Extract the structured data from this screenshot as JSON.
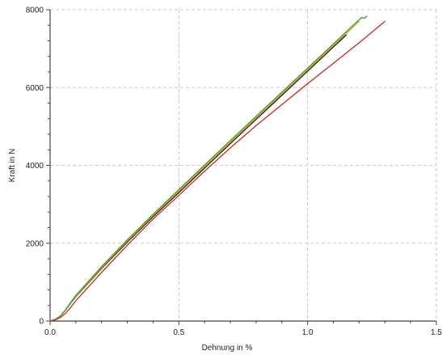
{
  "chart_data": {
    "type": "line",
    "title": "",
    "xlabel": "Dehnung in %",
    "ylabel": "Kraft in N",
    "xlim": [
      0,
      1.5
    ],
    "ylim": [
      0,
      8000
    ],
    "x_ticks": [
      "0.0",
      "0.5",
      "1.0",
      "1.5"
    ],
    "y_ticks": [
      "0",
      "2000",
      "4000",
      "6000",
      "8000"
    ],
    "grid": true,
    "legend": "none",
    "series": [
      {
        "color": "#1a1a1a",
        "x": [
          0,
          0.02,
          0.04,
          0.06,
          0.08,
          0.1,
          0.2,
          0.3,
          0.4,
          0.5,
          0.6,
          0.7,
          0.8,
          0.9,
          1.0,
          1.1,
          1.15
        ],
        "y": [
          0,
          40,
          130,
          280,
          460,
          630,
          1350,
          2030,
          2680,
          3300,
          3930,
          4560,
          5180,
          5800,
          6420,
          7040,
          7350
        ]
      },
      {
        "color": "#e09a20",
        "x": [
          0,
          0.02,
          0.04,
          0.06,
          0.08,
          0.1,
          0.2,
          0.3,
          0.4,
          0.5,
          0.6,
          0.7,
          0.8,
          0.9,
          1.0,
          1.1,
          1.2
        ],
        "y": [
          0,
          40,
          130,
          280,
          470,
          640,
          1370,
          2060,
          2710,
          3340,
          3970,
          4600,
          5220,
          5840,
          6460,
          7080,
          7700
        ]
      },
      {
        "color": "#3aa035",
        "x": [
          0,
          0.02,
          0.04,
          0.06,
          0.08,
          0.1,
          0.2,
          0.3,
          0.4,
          0.5,
          0.6,
          0.7,
          0.8,
          0.9,
          1.0,
          1.1,
          1.18,
          1.21,
          1.22,
          1.23
        ],
        "y": [
          0,
          40,
          130,
          290,
          480,
          660,
          1400,
          2090,
          2740,
          3380,
          4010,
          4640,
          5260,
          5880,
          6500,
          7120,
          7620,
          7800,
          7780,
          7830
        ]
      },
      {
        "color": "#c22a1f",
        "x": [
          0,
          0.02,
          0.04,
          0.06,
          0.08,
          0.1,
          0.2,
          0.3,
          0.4,
          0.5,
          0.6,
          0.7,
          0.8,
          0.9,
          1.0,
          1.1,
          1.2,
          1.3
        ],
        "y": [
          0,
          30,
          90,
          200,
          350,
          520,
          1250,
          1950,
          2620,
          3230,
          3850,
          4450,
          5020,
          5560,
          6100,
          6620,
          7150,
          7700
        ]
      }
    ]
  }
}
